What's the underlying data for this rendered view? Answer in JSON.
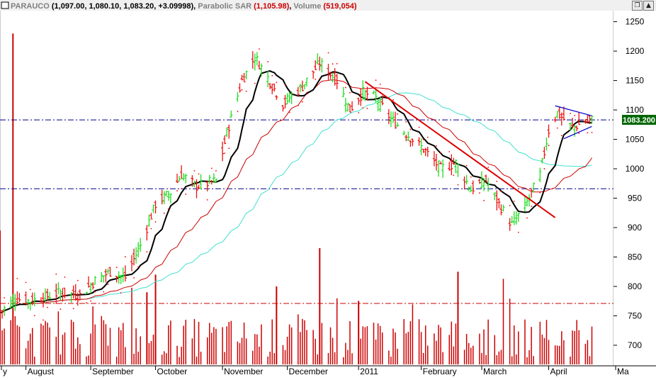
{
  "header": {
    "symbol": "PARAUCO",
    "ohlc": "(1,097.00, 1,080.10, 1,083.20, +3.09998)",
    "sar_name": "Parabolic SAR",
    "sar_value": "(1,105.98)",
    "volume_name": "Volume",
    "volume_value": "(519,054)"
  },
  "window_buttons": {
    "restore": "❐",
    "scroll_up": "▲"
  },
  "last_price_label": "1083.200",
  "colors": {
    "bar_up": "#22dd22",
    "bar_down": "#ee1111",
    "volume": "#cc0000",
    "sma_fast": "#000000",
    "sma_mid": "#cc0000",
    "sma_slow": "#40e0d0",
    "sar": "#ff0000",
    "resistance": "#00008b",
    "volume_line": "#cc0000",
    "trendline": "#dd0000",
    "triangle": "#0000cc",
    "price_tag_bg": "#006600",
    "price_tag_text": "#ffffff"
  },
  "chart_data": {
    "type": "ohlc",
    "x_months": [
      "y",
      "August",
      "September",
      "October",
      "November",
      "December",
      "2011",
      "February",
      "March",
      "April",
      "Ma"
    ],
    "y_ticks": [
      700,
      750,
      800,
      850,
      900,
      950,
      1000,
      1050,
      1100,
      1150,
      1200,
      1250
    ],
    "ylim": [
      665,
      1270
    ],
    "dates": [
      "2010-07-21",
      "2011-05-01"
    ],
    "price_anchors": [
      [
        "2010-07-21",
        755
      ],
      [
        "2010-07-28",
        780
      ],
      [
        "2010-08-04",
        775
      ],
      [
        "2010-08-18",
        790
      ],
      [
        "2010-08-27",
        785
      ],
      [
        "2010-09-03",
        810
      ],
      [
        "2010-09-10",
        825
      ],
      [
        "2010-09-17",
        815
      ],
      [
        "2010-09-24",
        870
      ],
      [
        "2010-10-01",
        940
      ],
      [
        "2010-10-08",
        960
      ],
      [
        "2010-10-13",
        990
      ],
      [
        "2010-10-20",
        970
      ],
      [
        "2010-10-29",
        980
      ],
      [
        "2010-11-03",
        1060
      ],
      [
        "2010-11-10",
        1150
      ],
      [
        "2010-11-16",
        1190
      ],
      [
        "2010-11-22",
        1155
      ],
      [
        "2010-11-29",
        1110
      ],
      [
        "2010-12-08",
        1140
      ],
      [
        "2010-12-16",
        1180
      ],
      [
        "2010-12-24",
        1150
      ],
      [
        "2010-12-30",
        1100
      ],
      [
        "2011-01-05",
        1130
      ],
      [
        "2011-01-11",
        1120
      ],
      [
        "2011-01-18",
        1085
      ],
      [
        "2011-01-25",
        1060
      ],
      [
        "2011-02-03",
        1030
      ],
      [
        "2011-02-10",
        1000
      ],
      [
        "2011-02-17",
        1010
      ],
      [
        "2011-02-24",
        965
      ],
      [
        "2011-03-03",
        980
      ],
      [
        "2011-03-09",
        940
      ],
      [
        "2011-03-15",
        905
      ],
      [
        "2011-03-21",
        935
      ],
      [
        "2011-03-28",
        990
      ],
      [
        "2011-04-01",
        1065
      ],
      [
        "2011-04-05",
        1095
      ],
      [
        "2011-04-12",
        1070
      ],
      [
        "2011-04-18",
        1080
      ],
      [
        "2011-04-21",
        1083.2
      ]
    ],
    "horizontal_levels": [
      {
        "name": "resistance",
        "value": 1083
      },
      {
        "name": "support",
        "value": 966
      },
      {
        "name": "volume-line",
        "value": 771
      }
    ],
    "trendline": {
      "from": [
        "2011-01-06",
        1148
      ],
      "to": [
        "2011-04-04",
        917
      ]
    },
    "triangle": {
      "top": [
        [
          "2011-04-04",
          1107
        ],
        [
          "2011-04-21",
          1090
        ]
      ],
      "bottom": [
        [
          "2011-04-08",
          1051
        ],
        [
          "2011-04-21",
          1072
        ]
      ]
    },
    "volume_spikes": [
      [
        "2010-07-27",
        1230
      ],
      [
        "2010-07-21",
        895
      ],
      [
        "2010-09-27",
        790
      ],
      [
        "2010-10-01",
        820
      ],
      [
        "2010-11-26",
        800
      ],
      [
        "2010-12-16",
        865
      ],
      [
        "2011-01-03",
        775
      ],
      [
        "2011-02-18",
        825
      ]
    ]
  }
}
